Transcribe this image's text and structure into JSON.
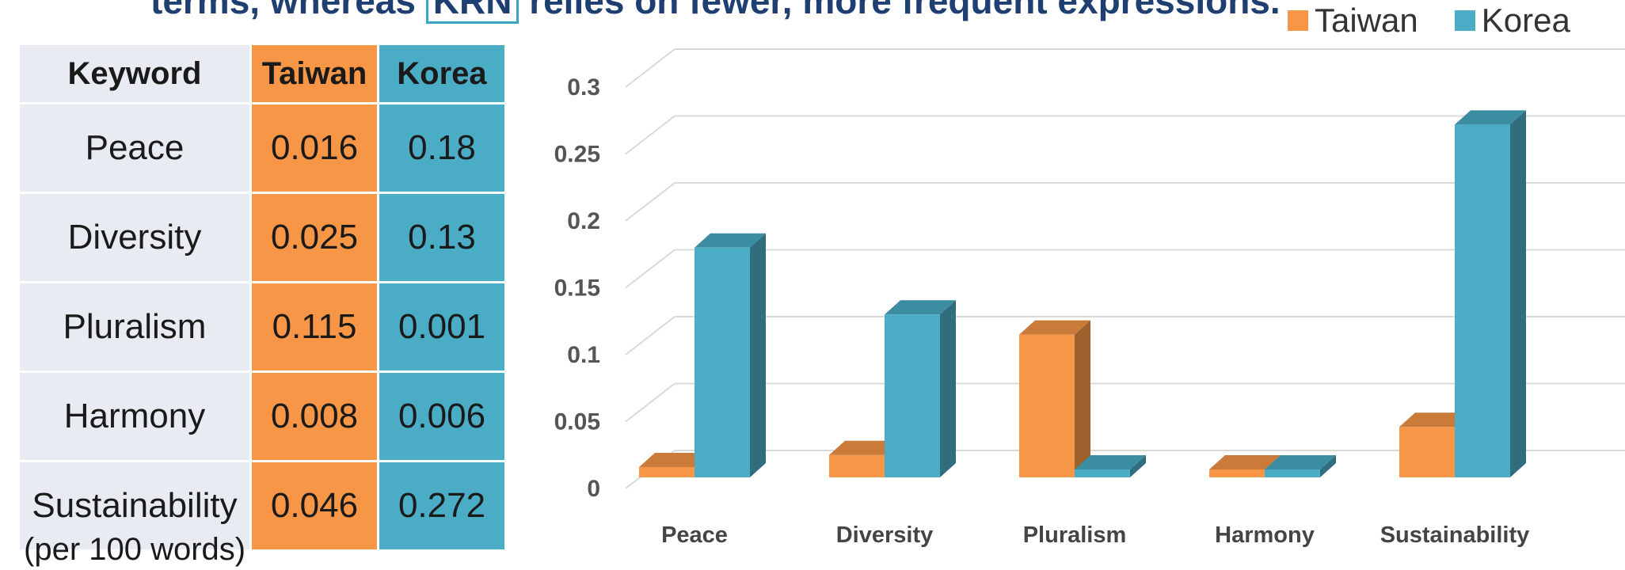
{
  "caption": {
    "before": "terms, whereas ",
    "boxed": "KRN",
    "after": " relies on fewer, more frequent expressions."
  },
  "legend": [
    {
      "name": "Taiwan",
      "color": "#f79646"
    },
    {
      "name": "Korea",
      "color": "#4bacc6"
    }
  ],
  "table": {
    "headers": [
      "Keyword",
      "Taiwan",
      "Korea"
    ],
    "rows": [
      [
        "Peace",
        "0.016",
        "0.18"
      ],
      [
        "Diversity",
        "0.025",
        "0.13"
      ],
      [
        "Pluralism",
        "0.115",
        "0.001"
      ],
      [
        "Harmony",
        "0.008",
        "0.006"
      ],
      [
        "Sustainability",
        "0.046",
        "0.272"
      ]
    ],
    "note": "(per 100 words)"
  },
  "chart_data": {
    "type": "bar",
    "categories": [
      "Peace",
      "Diversity",
      "Pluralism",
      "Harmony",
      "Sustainability"
    ],
    "series": [
      {
        "name": "Taiwan",
        "values": [
          0.016,
          0.025,
          0.115,
          0.008,
          0.046
        ],
        "color": "#f79646"
      },
      {
        "name": "Korea",
        "values": [
          0.18,
          0.13,
          0.001,
          0.006,
          0.272
        ],
        "color": "#4bacc6"
      }
    ],
    "yticks": [
      "0",
      "0.05",
      "0.1",
      "0.15",
      "0.2",
      "0.25",
      "0.3"
    ],
    "ylim": [
      0,
      0.3
    ],
    "grid": true,
    "legend_position": "top-right",
    "style": "3d-clustered-column"
  }
}
